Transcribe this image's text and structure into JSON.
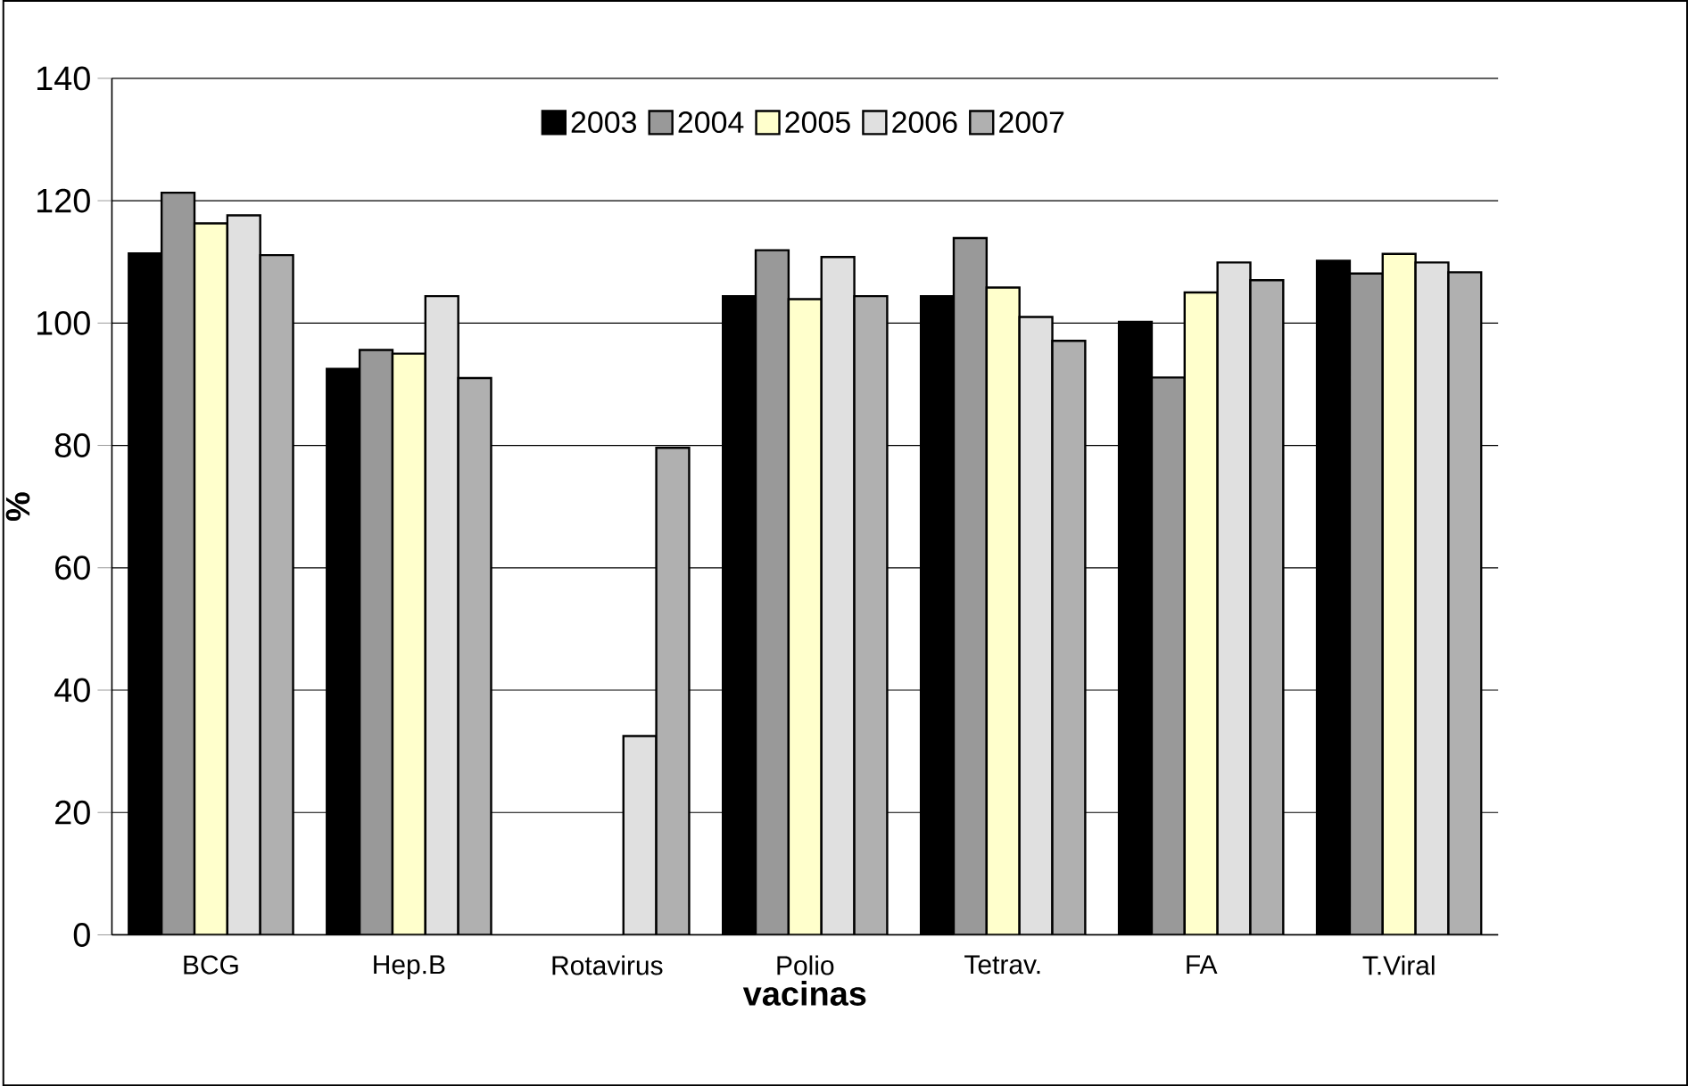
{
  "chart_data": {
    "type": "bar",
    "xlabel": "vacinas",
    "ylabel": "%",
    "categories": [
      "BCG",
      "Hep.B",
      "Rotavirus",
      "Polio",
      "Tetrav.",
      "FA",
      "T.Viral"
    ],
    "series": [
      {
        "name": "2003",
        "color": "#000000",
        "values": [
          111.4,
          92.5,
          null,
          104.4,
          104.4,
          100.2,
          110.2
        ]
      },
      {
        "name": "2004",
        "color": "#999999",
        "values": [
          121.3,
          95.6,
          null,
          111.9,
          113.9,
          91.1,
          108.1
        ]
      },
      {
        "name": "2005",
        "color": "#ffffcc",
        "values": [
          116.3,
          95.0,
          null,
          103.9,
          105.8,
          105.0,
          111.3
        ]
      },
      {
        "name": "2006",
        "color": "#e0e0e0",
        "values": [
          117.6,
          104.4,
          32.5,
          110.8,
          101.0,
          109.9,
          109.9
        ]
      },
      {
        "name": "2007",
        "color": "#b0b0b0",
        "values": [
          111.1,
          91.0,
          79.6,
          104.4,
          97.1,
          107.0,
          108.3
        ]
      }
    ],
    "ylim": [
      0,
      140
    ],
    "yticks": [
      0,
      20,
      40,
      60,
      80,
      100,
      120,
      140
    ],
    "grid": "y",
    "legend": "top"
  }
}
